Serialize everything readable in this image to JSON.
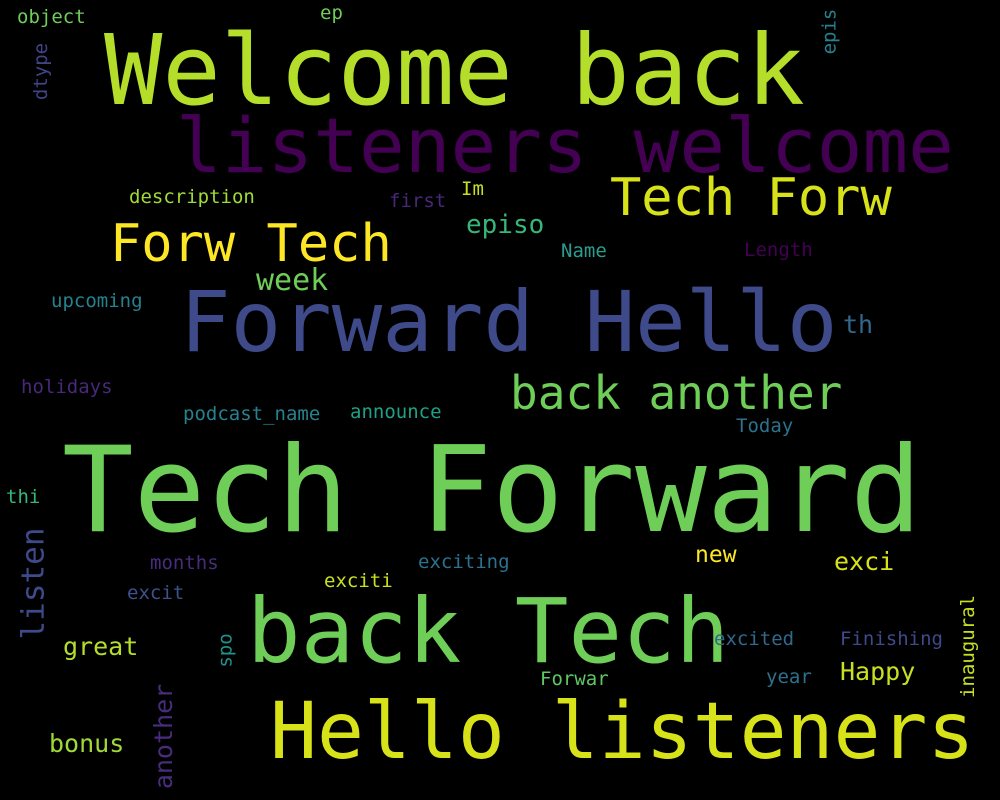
{
  "palette": {
    "yellow": "#fde725",
    "lime": "#b5de2b",
    "green": "#6ece58",
    "teal": "#35b779",
    "cyan": "#26828e",
    "blue": "#3e4a89",
    "indigo": "#482878",
    "purple": "#440154",
    "background": "#000000"
  },
  "words": [
    {
      "text": "Tech Forward",
      "color": "#6ece58"
    },
    {
      "text": "Welcome back",
      "color": "#b5de2b"
    },
    {
      "text": "listeners welcome",
      "color": "#440154"
    },
    {
      "text": "Forward Hello",
      "color": "#3e4a89"
    },
    {
      "text": "Hello listeners",
      "color": "#d8e219"
    },
    {
      "text": "back Tech",
      "color": "#6ece58"
    },
    {
      "text": "Tech Forw",
      "color": "#d8e219"
    },
    {
      "text": "Forw Tech",
      "color": "#fde725"
    },
    {
      "text": "back another",
      "color": "#6ece58"
    },
    {
      "text": "week",
      "color": "#6ece58"
    },
    {
      "text": "episo",
      "color": "#35b779"
    },
    {
      "text": "description",
      "color": "#a0da39"
    },
    {
      "text": "first",
      "color": "#482878"
    },
    {
      "text": "Im",
      "color": "#c8e020"
    },
    {
      "text": "Name",
      "color": "#2a9d8f"
    },
    {
      "text": "Length",
      "color": "#440154"
    },
    {
      "text": "upcoming",
      "color": "#26828e"
    },
    {
      "text": "th",
      "color": "#31688e"
    },
    {
      "text": "holidays",
      "color": "#482878"
    },
    {
      "text": "podcast_name",
      "color": "#26828e"
    },
    {
      "text": "announce",
      "color": "#1fa187"
    },
    {
      "text": "Today",
      "color": "#2c728e"
    },
    {
      "text": "thi",
      "color": "#35b779"
    },
    {
      "text": "listen",
      "color": "#3e4a89"
    },
    {
      "text": "months",
      "color": "#472d7b"
    },
    {
      "text": "exciting",
      "color": "#2c728e"
    },
    {
      "text": "new",
      "color": "#fde725"
    },
    {
      "text": "exci",
      "color": "#d8e219"
    },
    {
      "text": "excit",
      "color": "#3b528b"
    },
    {
      "text": "exciti",
      "color": "#c8e020"
    },
    {
      "text": "great",
      "color": "#b5de2b"
    },
    {
      "text": "spo",
      "color": "#21918c"
    },
    {
      "text": "excited",
      "color": "#31688e"
    },
    {
      "text": "Finishing",
      "color": "#3e4a89"
    },
    {
      "text": "inaugural",
      "color": "#c8e020"
    },
    {
      "text": "Forwar",
      "color": "#5ec962"
    },
    {
      "text": "year",
      "color": "#2c728e"
    },
    {
      "text": "Happy",
      "color": "#c8e020"
    },
    {
      "text": "bonus",
      "color": "#a0da39"
    },
    {
      "text": "another",
      "color": "#472d7b"
    },
    {
      "text": "object",
      "color": "#6ece58"
    },
    {
      "text": "ep",
      "color": "#6ece58"
    },
    {
      "text": "dtype",
      "color": "#414487"
    },
    {
      "text": "epis",
      "color": "#26828e"
    }
  ]
}
